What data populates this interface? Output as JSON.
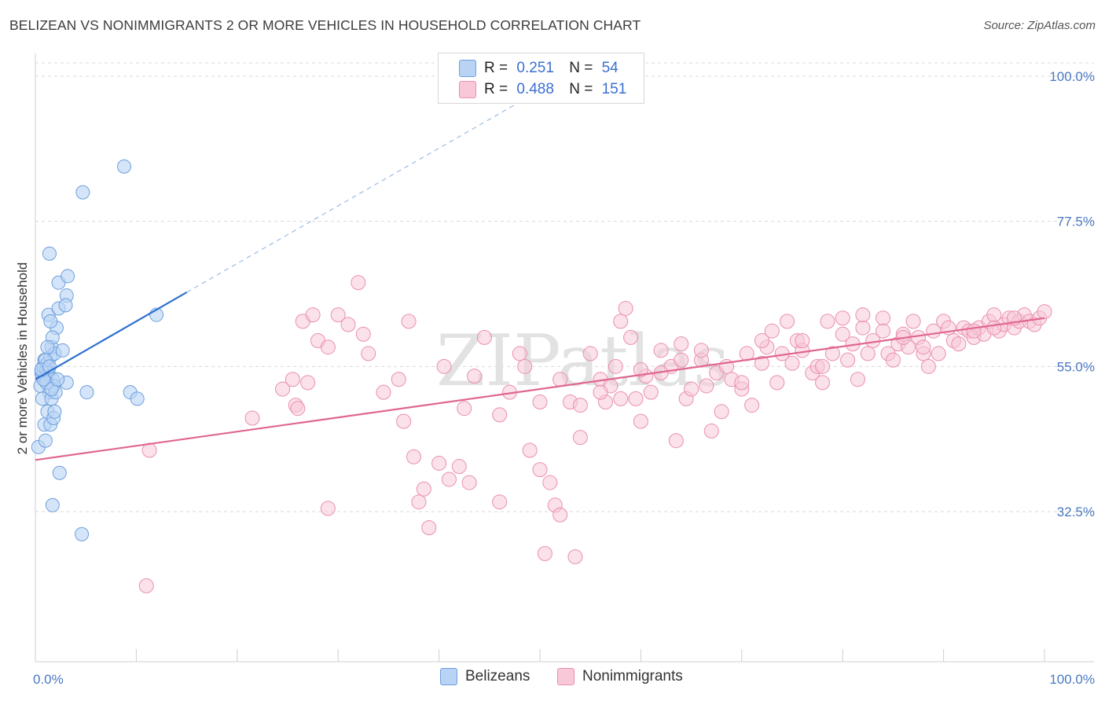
{
  "title": "BELIZEAN VS NONIMMIGRANTS 2 OR MORE VEHICLES IN HOUSEHOLD CORRELATION CHART",
  "source": "Source: ZipAtlas.com",
  "legend": {
    "r_label": "R =",
    "n_label": "N =",
    "series": [
      {
        "name": "Belizeans",
        "r": "0.251",
        "n": "54"
      },
      {
        "name": "Nonimmigrants",
        "r": "0.488",
        "n": "151"
      }
    ]
  },
  "colors": {
    "belizeans_fill": "#b9d3f5",
    "belizeans_stroke": "#6d9fdc",
    "belizeans_line": "#2f72d1",
    "nonimmigrants_fill": "#f8c8d8",
    "nonimmigrants_stroke": "#ea8fae",
    "nonimmigrants_line": "#e06690",
    "tick_text": "#4a78c2"
  },
  "chart_data": {
    "type": "scatter",
    "title": "BELIZEAN VS NONIMMIGRANTS 2 OR MORE VEHICLES IN HOUSEHOLD CORRELATION CHART",
    "xlabel": "",
    "ylabel": "2 or more Vehicles in Household",
    "xlim": [
      0,
      100
    ],
    "ylim": [
      10,
      105
    ],
    "x_tick_labels": [
      "0.0%",
      "100.0%"
    ],
    "y_ticks": [
      32.5,
      55.0,
      77.5,
      100.0
    ],
    "y_tick_labels": [
      "32.5%",
      "55.0%",
      "77.5%",
      "100.0%"
    ],
    "grid": "horizontal dashed",
    "watermark": "ZIPatlas",
    "series": [
      {
        "name": "Belizeans",
        "trend": {
          "x0": 0,
          "y0": 53.0,
          "x1": 15,
          "y1": 66.5,
          "dashed_to": {
            "x": 48,
            "y": 96
          }
        },
        "points": [
          [
            0.3,
            42.5
          ],
          [
            0.5,
            52
          ],
          [
            0.6,
            54
          ],
          [
            0.7,
            53.5
          ],
          [
            0.8,
            55
          ],
          [
            0.9,
            56
          ],
          [
            1.0,
            53
          ],
          [
            1.1,
            54.5
          ],
          [
            1.2,
            55.5
          ],
          [
            1.3,
            54
          ],
          [
            1.4,
            51
          ],
          [
            1.5,
            56.5
          ],
          [
            1.6,
            58
          ],
          [
            1.7,
            53
          ],
          [
            1.8,
            52
          ],
          [
            1.9,
            57
          ],
          [
            0.7,
            50
          ],
          [
            0.9,
            46
          ],
          [
            1.0,
            43.5
          ],
          [
            1.2,
            48
          ],
          [
            1.5,
            46
          ],
          [
            1.6,
            50
          ],
          [
            1.8,
            47
          ],
          [
            1.9,
            48
          ],
          [
            2.0,
            51
          ],
          [
            2.1,
            61
          ],
          [
            1.3,
            63
          ],
          [
            1.5,
            62
          ],
          [
            1.7,
            59.5
          ],
          [
            2.3,
            64
          ],
          [
            1.4,
            72.5
          ],
          [
            2.3,
            68
          ],
          [
            3.1,
            66
          ],
          [
            3.2,
            69
          ],
          [
            3.0,
            64.5
          ],
          [
            3.1,
            52.5
          ],
          [
            2.7,
            57.5
          ],
          [
            1.1,
            52.5
          ],
          [
            1.6,
            51.5
          ],
          [
            0.8,
            53
          ],
          [
            1.0,
            56
          ],
          [
            1.2,
            58
          ],
          [
            2.2,
            53
          ],
          [
            2.4,
            38.5
          ],
          [
            1.7,
            33.5
          ],
          [
            4.6,
            29
          ],
          [
            5.1,
            51
          ],
          [
            4.7,
            82
          ],
          [
            8.8,
            86
          ],
          [
            9.4,
            51
          ],
          [
            10.1,
            50
          ],
          [
            12.0,
            63
          ],
          [
            0.6,
            54.5
          ],
          [
            1.4,
            55
          ]
        ]
      },
      {
        "name": "Nonimmigrants",
        "trend": {
          "x0": 0,
          "y0": 40.5,
          "x1": 100,
          "y1": 62.5
        },
        "points": [
          [
            11.3,
            42
          ],
          [
            11.0,
            21
          ],
          [
            21.5,
            47
          ],
          [
            24.5,
            51.5
          ],
          [
            25.5,
            53
          ],
          [
            25.8,
            49
          ],
          [
            27.0,
            52.5
          ],
          [
            26.0,
            48.5
          ],
          [
            26.5,
            62
          ],
          [
            27.5,
            63
          ],
          [
            28.0,
            59
          ],
          [
            29.0,
            58
          ],
          [
            30.0,
            63
          ],
          [
            31.0,
            61.5
          ],
          [
            32.5,
            60
          ],
          [
            33.0,
            57
          ],
          [
            32.0,
            68
          ],
          [
            29.0,
            33
          ],
          [
            34.5,
            51
          ],
          [
            36.0,
            53
          ],
          [
            37.0,
            62
          ],
          [
            36.5,
            46.5
          ],
          [
            37.5,
            41
          ],
          [
            38.0,
            34
          ],
          [
            38.5,
            36
          ],
          [
            39.0,
            30
          ],
          [
            40.0,
            40
          ],
          [
            40.5,
            55
          ],
          [
            41.0,
            37.5
          ],
          [
            42.0,
            39.5
          ],
          [
            43.0,
            37
          ],
          [
            42.5,
            48.5
          ],
          [
            43.5,
            53.5
          ],
          [
            44.5,
            59.5
          ],
          [
            46.0,
            34
          ],
          [
            46.0,
            47.5
          ],
          [
            47.0,
            51
          ],
          [
            48.0,
            57
          ],
          [
            48.5,
            55
          ],
          [
            49.0,
            42
          ],
          [
            50.0,
            39
          ],
          [
            51.0,
            37
          ],
          [
            51.5,
            33.5
          ],
          [
            50.5,
            26
          ],
          [
            52.0,
            32
          ],
          [
            53.5,
            25.5
          ],
          [
            53.0,
            49.5
          ],
          [
            54.0,
            44
          ],
          [
            55.0,
            57
          ],
          [
            56.0,
            53
          ],
          [
            56.5,
            49.5
          ],
          [
            57.0,
            52
          ],
          [
            57.5,
            55
          ],
          [
            58.0,
            62
          ],
          [
            58.5,
            64
          ],
          [
            59.0,
            59.5
          ],
          [
            59.5,
            50
          ],
          [
            60.0,
            46.5
          ],
          [
            60.5,
            53.5
          ],
          [
            61.0,
            51
          ],
          [
            62.0,
            57.5
          ],
          [
            63.0,
            55
          ],
          [
            63.5,
            43.5
          ],
          [
            64.0,
            56
          ],
          [
            64.5,
            50
          ],
          [
            65.0,
            51.5
          ],
          [
            66.0,
            56
          ],
          [
            66.5,
            52
          ],
          [
            67.0,
            45
          ],
          [
            67.5,
            54
          ],
          [
            68.0,
            48
          ],
          [
            68.5,
            55
          ],
          [
            69.0,
            53
          ],
          [
            70.0,
            51.5
          ],
          [
            70.5,
            57
          ],
          [
            71.0,
            49
          ],
          [
            72.0,
            55.5
          ],
          [
            72.5,
            58
          ],
          [
            73.0,
            60.5
          ],
          [
            73.5,
            52.5
          ],
          [
            74.0,
            57
          ],
          [
            75.0,
            55.5
          ],
          [
            75.5,
            59
          ],
          [
            76.0,
            57.5
          ],
          [
            77.0,
            54
          ],
          [
            77.5,
            55
          ],
          [
            78.0,
            52.5
          ],
          [
            78.5,
            62
          ],
          [
            79.0,
            57
          ],
          [
            80.0,
            60
          ],
          [
            80.5,
            56
          ],
          [
            81.0,
            58.5
          ],
          [
            81.5,
            53
          ],
          [
            82.0,
            61
          ],
          [
            82.5,
            57
          ],
          [
            83.0,
            59
          ],
          [
            84.0,
            62.5
          ],
          [
            84.5,
            57
          ],
          [
            85.0,
            56
          ],
          [
            85.5,
            58.5
          ],
          [
            86.0,
            60
          ],
          [
            86.5,
            58
          ],
          [
            87.0,
            62
          ],
          [
            87.5,
            59.5
          ],
          [
            88.0,
            57
          ],
          [
            88.5,
            55
          ],
          [
            89.0,
            60.5
          ],
          [
            89.5,
            57
          ],
          [
            90.0,
            62
          ],
          [
            90.5,
            61
          ],
          [
            91.0,
            59
          ],
          [
            91.5,
            58.5
          ],
          [
            92.0,
            61
          ],
          [
            92.5,
            60.5
          ],
          [
            93.0,
            59.5
          ],
          [
            93.5,
            61
          ],
          [
            94.0,
            60
          ],
          [
            94.5,
            62
          ],
          [
            95.0,
            63
          ],
          [
            95.5,
            60.5
          ],
          [
            96.0,
            61.5
          ],
          [
            96.5,
            62.5
          ],
          [
            97.0,
            61
          ],
          [
            97.5,
            62
          ],
          [
            98.0,
            63
          ],
          [
            98.5,
            62
          ],
          [
            99.0,
            61.5
          ],
          [
            99.5,
            62.5
          ],
          [
            100.0,
            63.5
          ],
          [
            97.0,
            62.5
          ],
          [
            95.0,
            61
          ],
          [
            93.0,
            60.5
          ],
          [
            88.0,
            58
          ],
          [
            86.0,
            59.5
          ],
          [
            84.0,
            60.5
          ],
          [
            82.0,
            63
          ],
          [
            80.0,
            62.5
          ],
          [
            78.0,
            55
          ],
          [
            76.0,
            59
          ],
          [
            74.5,
            62
          ],
          [
            72.0,
            59
          ],
          [
            70.0,
            52.5
          ],
          [
            66.0,
            57.5
          ],
          [
            64.0,
            58.5
          ],
          [
            62.0,
            54
          ],
          [
            60.0,
            54.5
          ],
          [
            58.0,
            50
          ],
          [
            56.0,
            51
          ],
          [
            54.0,
            49
          ],
          [
            52.0,
            53
          ],
          [
            50.0,
            49.5
          ]
        ]
      }
    ]
  }
}
